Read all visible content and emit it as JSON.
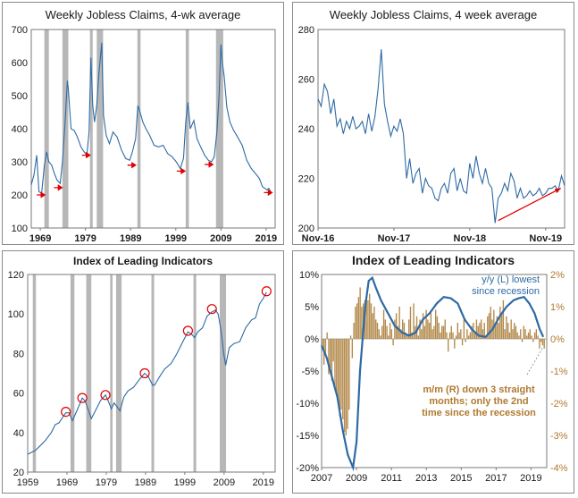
{
  "chart_data": [
    {
      "id": "jobless_long",
      "type": "line",
      "title": "Weekly Jobless Claims, 4-wk average",
      "xlim": [
        1967,
        2021
      ],
      "ylim": [
        100,
        700
      ],
      "x_ticks": [
        1969,
        1979,
        1989,
        1999,
        2009,
        2019
      ],
      "y_ticks": [
        100,
        200,
        300,
        400,
        500,
        600,
        700
      ],
      "line_color": "#2e6aa4",
      "recession_color": "#b7b7b7",
      "marker_color": "#e00000",
      "recessions": [
        [
          1969.9,
          1970.9
        ],
        [
          1973.9,
          1975.2
        ],
        [
          1980.0,
          1980.6
        ],
        [
          1981.5,
          1982.9
        ],
        [
          1990.5,
          1991.2
        ],
        [
          2001.2,
          2001.9
        ],
        [
          2007.9,
          2009.5
        ]
      ],
      "markers": [
        [
          1969.2,
          200
        ],
        [
          1973.0,
          222
        ],
        [
          1979.2,
          320
        ],
        [
          1989.3,
          290
        ],
        [
          2000.2,
          272
        ],
        [
          2006.4,
          292
        ],
        [
          2019.5,
          207
        ]
      ],
      "x": [
        1967.0,
        1967.6,
        1968.2,
        1968.7,
        1969.3,
        1969.9,
        1970.4,
        1970.9,
        1971.5,
        1972.1,
        1972.7,
        1973.4,
        1973.9,
        1974.5,
        1975.0,
        1975.2,
        1975.8,
        1976.5,
        1977.2,
        1978.0,
        1978.7,
        1979.3,
        1979.8,
        1980.2,
        1980.6,
        1981.0,
        1981.5,
        1982.0,
        1982.6,
        1983.0,
        1983.6,
        1984.3,
        1985.1,
        1986.0,
        1987.0,
        1987.9,
        1988.8,
        1989.4,
        1990.1,
        1990.6,
        1991.1,
        1991.7,
        1992.4,
        1993.2,
        1994.2,
        1995.2,
        1996.2,
        1997.2,
        1998.2,
        1999.1,
        2000.0,
        2000.7,
        2001.2,
        2001.7,
        2002.2,
        2003.0,
        2003.7,
        2004.5,
        2005.4,
        2006.2,
        2006.9,
        2007.5,
        2008.1,
        2008.6,
        2009.0,
        2009.3,
        2009.7,
        2010.3,
        2011.0,
        2011.8,
        2012.7,
        2013.7,
        2014.7,
        2015.7,
        2016.6,
        2017.5,
        2018.2,
        2018.7,
        2019.2,
        2019.6,
        2020.0
      ],
      "y": [
        230,
        260,
        320,
        210,
        205,
        290,
        330,
        300,
        290,
        265,
        245,
        235,
        300,
        420,
        545,
        520,
        400,
        395,
        375,
        345,
        330,
        320,
        390,
        615,
        470,
        420,
        470,
        570,
        660,
        440,
        380,
        355,
        390,
        375,
        335,
        310,
        305,
        330,
        370,
        470,
        450,
        420,
        400,
        380,
        350,
        345,
        350,
        325,
        315,
        300,
        280,
        310,
        420,
        480,
        400,
        425,
        370,
        345,
        320,
        305,
        300,
        315,
        390,
        505,
        655,
        600,
        560,
        465,
        420,
        395,
        375,
        350,
        305,
        280,
        265,
        250,
        225,
        220,
        215,
        220,
        210
      ]
    },
    {
      "id": "jobless_short",
      "type": "line",
      "title": "Weekly Jobless Claims, 4 week average",
      "xlim": [
        0,
        39
      ],
      "ylim": [
        200,
        280
      ],
      "x_ticks": [
        0,
        12,
        24,
        36
      ],
      "x_tick_labels": [
        "Nov-16",
        "Nov-17",
        "Nov-18",
        "Nov-19"
      ],
      "y_ticks": [
        200,
        220,
        240,
        260,
        280
      ],
      "line_color": "#2e6aa4",
      "arrow_color": "#e00000",
      "arrow_from": [
        28.5,
        203
      ],
      "arrow_to": [
        38.4,
        216
      ],
      "x": [
        0,
        0.5,
        1,
        1.5,
        2,
        2.5,
        3,
        3.5,
        4,
        4.5,
        5,
        5.5,
        6,
        6.5,
        7,
        7.5,
        8,
        8.5,
        9,
        9.5,
        10,
        10.5,
        11,
        11.5,
        12,
        12.5,
        13,
        13.5,
        14,
        14.5,
        15,
        15.5,
        16,
        16.5,
        17,
        17.5,
        18,
        18.5,
        19,
        19.5,
        20,
        20.5,
        21,
        21.5,
        22,
        22.5,
        23,
        23.5,
        24,
        24.5,
        25,
        25.5,
        26,
        26.5,
        27,
        27.5,
        28,
        28.5,
        29,
        29.5,
        30,
        30.5,
        31,
        31.5,
        32,
        32.5,
        33,
        33.5,
        34,
        34.5,
        35,
        35.5,
        36,
        36.5,
        37,
        37.5,
        38,
        38.5,
        39
      ],
      "y": [
        252,
        249,
        258,
        255,
        246,
        252,
        241,
        244,
        238,
        243,
        240,
        245,
        240,
        241,
        243,
        238,
        246,
        239,
        245,
        256,
        272,
        250,
        243,
        237,
        241,
        239,
        244,
        238,
        220,
        228,
        218,
        222,
        224,
        214,
        220,
        217,
        216,
        212,
        211,
        216,
        218,
        214,
        222,
        224,
        215,
        220,
        215,
        214,
        226,
        220,
        229,
        222,
        218,
        224,
        218,
        216,
        202,
        212,
        214,
        218,
        215,
        222,
        219,
        212,
        216,
        212,
        213,
        215,
        213,
        214,
        216,
        213,
        214,
        216,
        216,
        217,
        215,
        221,
        217
      ]
    },
    {
      "id": "lei_long",
      "type": "line",
      "title": "Index of Leading Indicators",
      "xlim": [
        1959,
        2022
      ],
      "ylim": [
        20,
        120
      ],
      "x_ticks": [
        1959,
        1969,
        1979,
        1989,
        1999,
        2009,
        2019
      ],
      "y_ticks": [
        20,
        40,
        60,
        80,
        100,
        120
      ],
      "line_color": "#2e6aa4",
      "recession_color": "#b7b7b7",
      "circle_color": "#e00000",
      "recessions": [
        [
          1960.3,
          1961.1
        ],
        [
          1969.9,
          1970.9
        ],
        [
          1973.9,
          1975.2
        ],
        [
          1980.0,
          1980.6
        ],
        [
          1981.5,
          1982.9
        ],
        [
          1990.5,
          1991.2
        ],
        [
          2001.2,
          2001.9
        ],
        [
          2007.9,
          2009.5
        ]
      ],
      "circles": [
        [
          1968.7,
          50.5
        ],
        [
          1972.9,
          57.5
        ],
        [
          1978.8,
          59.0
        ],
        [
          1988.8,
          70.0
        ],
        [
          1999.8,
          91.5
        ],
        [
          2005.9,
          102.5
        ],
        [
          2019.8,
          111.5
        ]
      ],
      "x": [
        1959.0,
        1960.0,
        1961.0,
        1962.0,
        1963.5,
        1965.0,
        1966.0,
        1967.0,
        1968.0,
        1968.7,
        1969.5,
        1970.4,
        1971.5,
        1972.9,
        1973.6,
        1974.5,
        1975.2,
        1976.5,
        1977.5,
        1978.8,
        1979.5,
        1980.3,
        1981.0,
        1981.8,
        1982.5,
        1983.5,
        1984.5,
        1986.0,
        1987.5,
        1988.8,
        1989.8,
        1990.8,
        1991.3,
        1992.5,
        1993.8,
        1995.5,
        1997.0,
        1998.5,
        1999.8,
        2000.6,
        2001.5,
        2002.3,
        2003.5,
        2004.7,
        2005.9,
        2006.8,
        2007.5,
        2008.2,
        2008.9,
        2009.4,
        2010.3,
        2011.5,
        2013.0,
        2014.5,
        2016.0,
        2017.0,
        2018.0,
        2019.0,
        2019.8
      ],
      "y": [
        29,
        30,
        31,
        33,
        36,
        40,
        44,
        45,
        48,
        50,
        50,
        46,
        51,
        57.5,
        56,
        51,
        47,
        52,
        56,
        59,
        56,
        52,
        55,
        53,
        51,
        58,
        61,
        63,
        67,
        70,
        68,
        64,
        64,
        68,
        72,
        75,
        80,
        86,
        91,
        90,
        88,
        91,
        93,
        99,
        101,
        102,
        100,
        92,
        80,
        74,
        83,
        85,
        86,
        93,
        97,
        98,
        105,
        108,
        111
      ]
    },
    {
      "id": "lei_growth",
      "type": "bar",
      "title": "Index of Leading Indicators",
      "xlim": [
        2007,
        2019.9
      ],
      "x_ticks": [
        2007,
        2009,
        2011,
        2013,
        2015,
        2017,
        2019
      ],
      "y_left_ticks": [
        -20,
        -15,
        -10,
        -5,
        0,
        5,
        10
      ],
      "y_left_tick_labels": [
        "-20%",
        "-15%",
        "-10%",
        "-5%",
        "0%",
        "5%",
        "10%"
      ],
      "y_right_ticks": [
        -4,
        -3,
        -2,
        -1,
        0,
        1,
        2
      ],
      "y_right_tick_labels": [
        "-4%",
        "-3%",
        "-2%",
        "-1%",
        "0%",
        "1%",
        "2%"
      ],
      "ylim_left": [
        -20,
        10
      ],
      "ylim_right": [
        -4,
        2
      ],
      "bar_color": "#b38a4c",
      "line_color": "#2e6aa4",
      "legend_line": "y/y (L) lowest",
      "legend_line2": "since recession",
      "annotation_lines": [
        "m/m (R) down 3 straight",
        "months; only the 2nd",
        "time since the recession"
      ],
      "annotation_color": "#b07a30",
      "series": [
        {
          "name": "y/y (L)",
          "axis": "left",
          "type": "line",
          "x": [
            2007.0,
            2007.3,
            2007.6,
            2007.9,
            2008.2,
            2008.5,
            2008.8,
            2009.0,
            2009.2,
            2009.5,
            2009.7,
            2009.9,
            2010.1,
            2010.4,
            2010.8,
            2011.2,
            2011.6,
            2012.0,
            2012.4,
            2012.8,
            2013.2,
            2013.6,
            2014.0,
            2014.4,
            2014.8,
            2015.2,
            2015.6,
            2016.0,
            2016.4,
            2016.8,
            2017.2,
            2017.6,
            2018.0,
            2018.3,
            2018.6,
            2018.9,
            2019.2,
            2019.5,
            2019.7
          ],
          "values": [
            -1,
            -3,
            -6,
            -9,
            -14,
            -18,
            -20,
            -16,
            -5,
            5,
            9,
            9.5,
            8,
            6,
            4,
            2,
            1,
            0.5,
            1,
            3,
            4,
            5.5,
            6.5,
            6.3,
            5.5,
            3,
            1.5,
            0.5,
            0.3,
            1.5,
            3.5,
            5,
            6,
            6.3,
            6.5,
            5.5,
            4,
            1.5,
            0.3
          ]
        },
        {
          "name": "m/m (R)",
          "axis": "right",
          "type": "bar",
          "values": [
            -0.2,
            -0.8,
            -0.5,
            0.2,
            -1.1,
            -0.9,
            -1.3,
            -0.7,
            -1.5,
            -1.7,
            -2.0,
            -2.4,
            -2.2,
            -2.5,
            -2.9,
            -3.0,
            -2.8,
            -2.2,
            0.1,
            -0.6,
            0.5,
            1.0,
            1.1,
            1.3,
            1.6,
            1.0,
            1.1,
            1.2,
            1.3,
            1.2,
            1.4,
            1.1,
            0.8,
            1.0,
            0.6,
            0.5,
            0.3,
            0.1,
            0.4,
            0.9,
            0.6,
            0.4,
            0.1,
            0.5,
            0.3,
            -0.2,
            0.6,
            0.8,
            0.4,
            1.0,
            0.3,
            0.6,
            0.5,
            0.2,
            0.1,
            0.6,
            1.0,
            0.2,
            1.1,
            0.4,
            0.7,
            0.1,
            0.6,
            0.3,
            0.8,
            0.4,
            0.9,
            0.6,
            0.5,
            0.8,
            0.3,
            0.4,
            0.9,
            0.7,
            0.5,
            0.2,
            0.4,
            0.4,
            0.6,
            0.2,
            -0.4,
            0.2,
            0.4,
            0.2,
            -0.3,
            0.1,
            0.5,
            0.2,
            0.3,
            -0.2,
            0.6,
            -0.1,
            0.3,
            0.1,
            0.2,
            0.4,
            0.5,
            0.2,
            0.6,
            0.4,
            0.5,
            0.6,
            0.3,
            0.5,
            0.1,
            0.7,
            0.8,
            1.0,
            0.6,
            0.9,
            0.4,
            0.7,
            0.5,
            1.0,
            0.8,
            1.2,
            0.3,
            0.7,
            0.5,
            0.2,
            0.6,
            0.3,
            0.5,
            0.4,
            0.2,
            0.1,
            0.3,
            -0.1,
            0.4,
            0.3,
            0.1,
            0.2,
            0.3,
            0.1,
            -0.1,
            0.2,
            0.3,
            0.1,
            -0.3,
            -0.1,
            -0.2,
            -0.3
          ]
        }
      ]
    }
  ]
}
